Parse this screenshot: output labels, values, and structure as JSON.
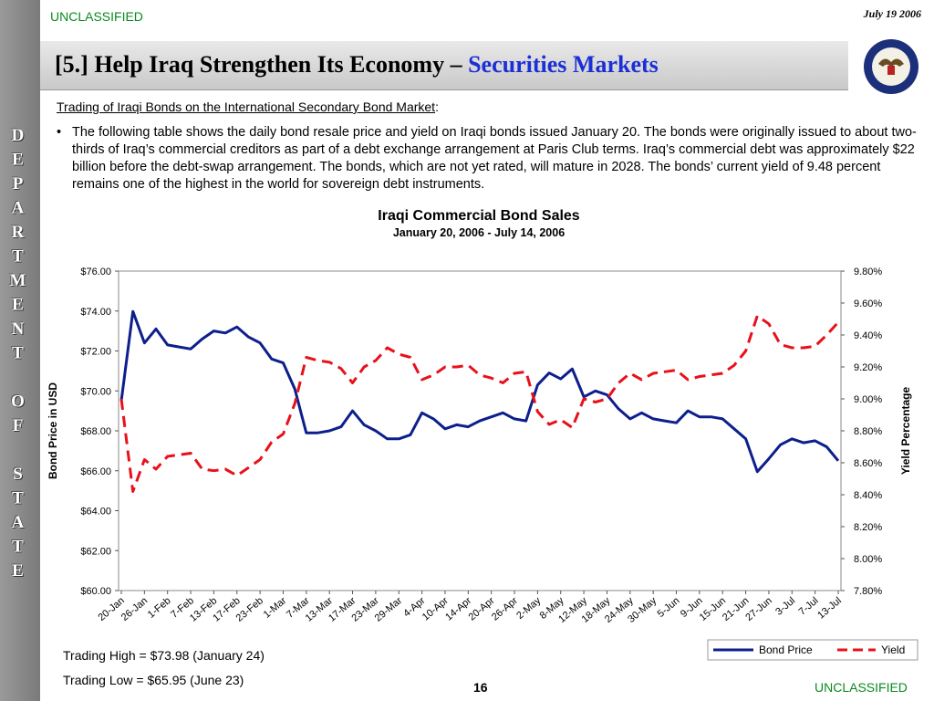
{
  "header": {
    "classification": "UNCLASSIFIED",
    "date": "July 19 2006",
    "title": "[5.] Help Iraq Strengthen Its Economy –",
    "title_highlight": "Securities Markets"
  },
  "sidebar": "DEPARTMENT OF STATE",
  "body": {
    "heading": "Trading of Iraqi Bonds on the International Secondary Bond Market",
    "heading_suffix": ":",
    "bullet": "The following table shows the daily bond resale price and yield on Iraqi bonds issued January 20.  The bonds were originally issued to about two-thirds of Iraq’s commercial creditors as part of a debt exchange arrangement at Paris Club terms.  Iraq’s commercial debt was approximately $22 billion before the debt-swap arrangement.  The bonds, which are not yet rated, will mature in 2028.  The bonds’ current yield of 9.48 percent remains one of the highest in the world for sovereign debt instruments."
  },
  "chart_data": {
    "type": "line",
    "title": "Iraqi Commercial Bond Sales",
    "subtitle": "January 20, 2006 - July 14, 2006",
    "y_label": "Bond Price in USD",
    "y2_label": "Yield Percentage",
    "categories": [
      "20-Jan",
      null,
      "26-Jan",
      null,
      "1-Feb",
      null,
      "7-Feb",
      null,
      "13-Feb",
      null,
      "17-Feb",
      null,
      "23-Feb",
      null,
      "1-Mar",
      null,
      "7-Mar",
      null,
      "13-Mar",
      null,
      "17-Mar",
      null,
      "23-Mar",
      null,
      "29-Mar",
      null,
      "4-Apr",
      null,
      "10-Apr",
      null,
      "14-Apr",
      null,
      "20-Apr",
      null,
      "26-Apr",
      null,
      "2-May",
      null,
      "8-May",
      null,
      "12-May",
      null,
      "18-May",
      null,
      "24-May",
      null,
      "30-May",
      null,
      "5-Jun",
      null,
      "9-Jun",
      null,
      "15-Jun",
      null,
      "21-Jun",
      null,
      "27-Jun",
      null,
      "3-Jul",
      null,
      "7-Jul",
      null,
      "13-Jul"
    ],
    "series": [
      {
        "name": "Bond Price",
        "color": "#0c1f8c",
        "line_style": "solid",
        "axis": "y",
        "values": [
          69.5,
          73.98,
          72.4,
          73.1,
          72.3,
          72.2,
          72.1,
          72.6,
          73.0,
          72.9,
          73.2,
          72.7,
          72.4,
          71.6,
          71.4,
          70.1,
          67.9,
          67.9,
          68.0,
          68.2,
          69.0,
          68.3,
          68.0,
          67.6,
          67.6,
          67.8,
          68.9,
          68.6,
          68.1,
          68.3,
          68.2,
          68.5,
          68.7,
          68.9,
          68.6,
          68.5,
          70.3,
          70.9,
          70.6,
          71.1,
          69.7,
          70.0,
          69.8,
          69.1,
          68.6,
          68.9,
          68.6,
          68.5,
          68.4,
          69.0,
          68.7,
          68.7,
          68.6,
          68.1,
          67.6,
          65.95,
          66.6,
          67.3,
          67.6,
          67.4,
          67.5,
          67.2,
          66.5
        ]
      },
      {
        "name": "Yield",
        "color": "#e8111a",
        "line_style": "dashed",
        "axis": "y2",
        "values": [
          9.0,
          8.42,
          8.62,
          8.56,
          8.64,
          8.65,
          8.66,
          8.56,
          8.55,
          8.56,
          8.52,
          8.57,
          8.62,
          8.73,
          8.78,
          8.97,
          9.26,
          9.24,
          9.23,
          9.19,
          9.1,
          9.2,
          9.24,
          9.32,
          9.28,
          9.26,
          9.12,
          9.15,
          9.2,
          9.2,
          9.21,
          9.15,
          9.13,
          9.1,
          9.16,
          9.17,
          8.92,
          8.84,
          8.87,
          8.82,
          9.0,
          8.98,
          9.0,
          9.1,
          9.16,
          9.12,
          9.16,
          9.17,
          9.18,
          9.12,
          9.14,
          9.15,
          9.16,
          9.21,
          9.3,
          9.52,
          9.47,
          9.34,
          9.32,
          9.32,
          9.33,
          9.4,
          9.48
        ]
      }
    ],
    "ylim": [
      60,
      76
    ],
    "yticks": [
      {
        "value": 60,
        "label": "$60.00"
      },
      {
        "value": 62,
        "label": "$62.00"
      },
      {
        "value": 64,
        "label": "$64.00"
      },
      {
        "value": 66,
        "label": "$66.00"
      },
      {
        "value": 68,
        "label": "$68.00"
      },
      {
        "value": 70,
        "label": "$70.00"
      },
      {
        "value": 72,
        "label": "$72.00"
      },
      {
        "value": 74,
        "label": "$74.00"
      },
      {
        "value": 76,
        "label": "$76.00"
      }
    ],
    "y2lim": [
      7.8,
      9.8
    ],
    "y2ticks": [
      {
        "value": 7.8,
        "label": "7.80%"
      },
      {
        "value": 8.0,
        "label": "8.00%"
      },
      {
        "value": 8.2,
        "label": "8.20%"
      },
      {
        "value": 8.4,
        "label": "8.40%"
      },
      {
        "value": 8.6,
        "label": "8.60%"
      },
      {
        "value": 8.8,
        "label": "8.80%"
      },
      {
        "value": 9.0,
        "label": "9.00%"
      },
      {
        "value": 9.2,
        "label": "9.20%"
      },
      {
        "value": 9.4,
        "label": "9.40%"
      },
      {
        "value": 9.6,
        "label": "9.60%"
      },
      {
        "value": 9.8,
        "label": "9.80%"
      }
    ],
    "grid": false,
    "legend": "bottom-right"
  },
  "notes": [
    "Trading High = $73.98 (January 24)",
    "Trading Low = $65.95 (June 23)"
  ],
  "footer": {
    "page": "16",
    "classification": "UNCLASSIFIED"
  }
}
